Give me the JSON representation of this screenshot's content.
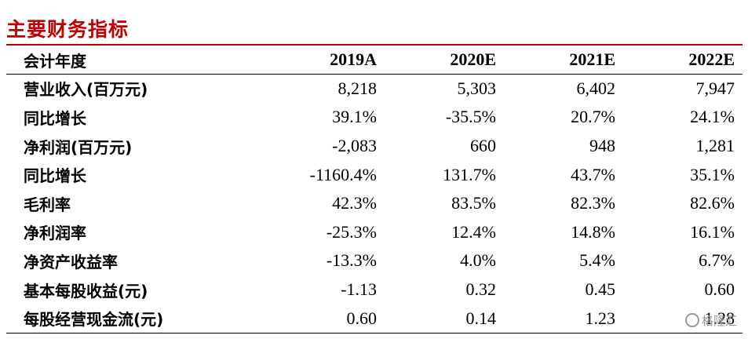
{
  "title": "主要财务指标",
  "table": {
    "header": [
      "会计年度",
      "2019A",
      "2020E",
      "2021E",
      "2022E"
    ],
    "rows": [
      {
        "label": "营业收入(百万元)",
        "values": [
          "8,218",
          "5,303",
          "6,402",
          "7,947"
        ]
      },
      {
        "label": "同比增长",
        "values": [
          "39.1%",
          "-35.5%",
          "20.7%",
          "24.1%"
        ]
      },
      {
        "label": "净利润(百万元)",
        "values": [
          "-2,083",
          "660",
          "948",
          "1,281"
        ]
      },
      {
        "label": "同比增长",
        "values": [
          "-1160.4%",
          "131.7%",
          "43.7%",
          "35.1%"
        ]
      },
      {
        "label": "毛利率",
        "values": [
          "42.3%",
          "83.5%",
          "82.3%",
          "82.6%"
        ]
      },
      {
        "label": "净利润率",
        "values": [
          "-25.3%",
          "12.4%",
          "14.8%",
          "16.1%"
        ]
      },
      {
        "label": "净资产收益率",
        "values": [
          "-13.3%",
          "4.0%",
          "5.4%",
          "6.7%"
        ]
      },
      {
        "label": "基本每股收益(元)",
        "values": [
          "-1.13",
          "0.32",
          "0.45",
          "0.60"
        ]
      },
      {
        "label": "每股经营现金流(元)",
        "values": [
          "0.60",
          "0.14",
          "1.23",
          "1.28"
        ]
      }
    ]
  },
  "watermark": {
    "text": "格隆汇"
  },
  "colors": {
    "accent": "#c00000",
    "watermark": "#9a9a9a"
  }
}
